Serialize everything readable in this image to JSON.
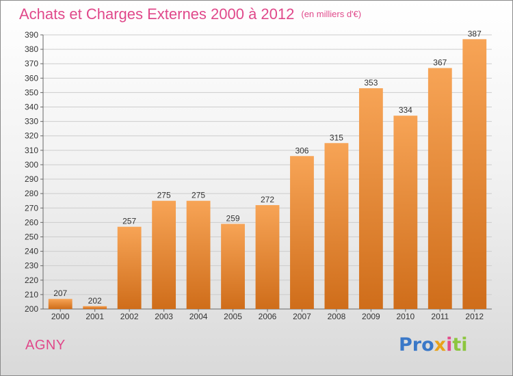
{
  "header": {
    "title": "Achats et Charges Externes 2000 à 2012",
    "unit": "(en milliers d'€)"
  },
  "footer": {
    "commune": "AGNY",
    "logo_text": "Proxiti"
  },
  "colors": {
    "title": "#e0488a",
    "bar_top": "#f7a456",
    "bar_bottom": "#cf6d1a",
    "grid": "#cccccc"
  },
  "chart_data": {
    "type": "bar",
    "title": "Achats et Charges Externes 2000 à 2012",
    "subtitle": "(en milliers d'€)",
    "xlabel": "",
    "ylabel": "",
    "categories": [
      "2000",
      "2001",
      "2002",
      "2003",
      "2004",
      "2005",
      "2006",
      "2007",
      "2008",
      "2009",
      "2010",
      "2011",
      "2012"
    ],
    "values": [
      207,
      202,
      257,
      275,
      275,
      259,
      272,
      306,
      315,
      353,
      334,
      367,
      387
    ],
    "ylim": [
      200,
      390
    ],
    "ytick_step": 10,
    "grid": true,
    "data_labels": true
  }
}
